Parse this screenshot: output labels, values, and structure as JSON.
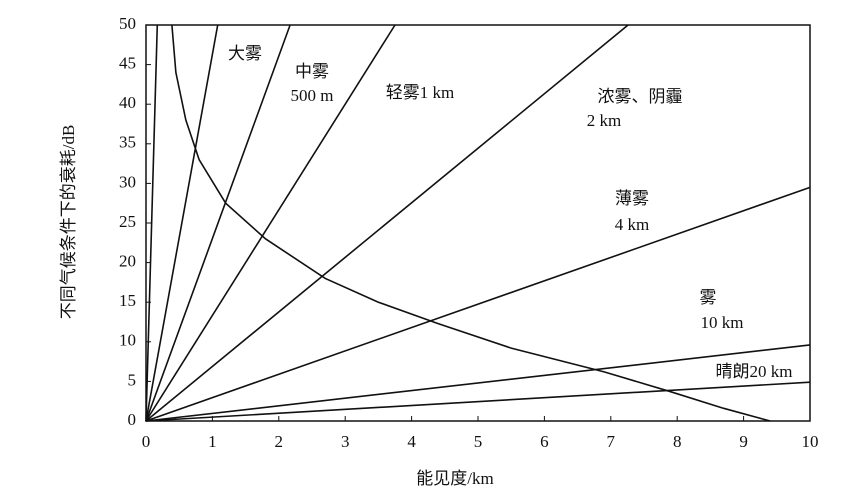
{
  "chart_data": {
    "type": "line",
    "x_label": "能见度/km",
    "y_label": "不同气候条件下的衰耗/dB",
    "xlim": [
      0,
      10
    ],
    "ylim": [
      0,
      50
    ],
    "xticks": [
      0,
      1,
      2,
      3,
      4,
      5,
      6,
      7,
      8,
      9,
      10
    ],
    "yticks": [
      0,
      5,
      10,
      15,
      20,
      25,
      30,
      35,
      40,
      45,
      50
    ],
    "series": [
      {
        "color": "#111",
        "x": [
          0,
          0.17
        ],
        "values": [
          0,
          50
        ]
      },
      {
        "color": "#111",
        "x": [
          0,
          1.08
        ],
        "values": [
          0,
          50
        ]
      },
      {
        "color": "#111",
        "x": [
          0,
          2.17
        ],
        "values": [
          0,
          50
        ]
      },
      {
        "color": "#111",
        "x": [
          0,
          3.75
        ],
        "values": [
          0,
          50
        ]
      },
      {
        "color": "#111",
        "x": [
          0,
          7.26
        ],
        "values": [
          0,
          50
        ]
      },
      {
        "color": "#111",
        "x": [
          0,
          10
        ],
        "values": [
          0,
          29.5
        ]
      },
      {
        "color": "#111",
        "x": [
          0,
          10
        ],
        "values": [
          0,
          9.6
        ]
      },
      {
        "color": "#111",
        "x": [
          0,
          10
        ],
        "values": [
          0,
          4.9
        ]
      },
      {
        "color": "#111",
        "x": [
          0.39,
          0.45,
          0.6,
          0.8,
          1.2,
          1.8,
          2.7,
          3.5,
          4.4,
          5.5,
          6.9,
          7.9,
          8.7,
          9.4
        ],
        "values": [
          50,
          44,
          38,
          33,
          27.5,
          23,
          18,
          15,
          12.3,
          9.2,
          6.2,
          3.7,
          1.6,
          0
        ]
      }
    ],
    "annotations": [
      "大雾",
      "中雾",
      "500 m",
      "轻雾1 km",
      "浓雾、阴霾",
      "2 km",
      "薄雾",
      "4 km",
      "雾",
      "10 km",
      "晴朗20 km"
    ]
  }
}
